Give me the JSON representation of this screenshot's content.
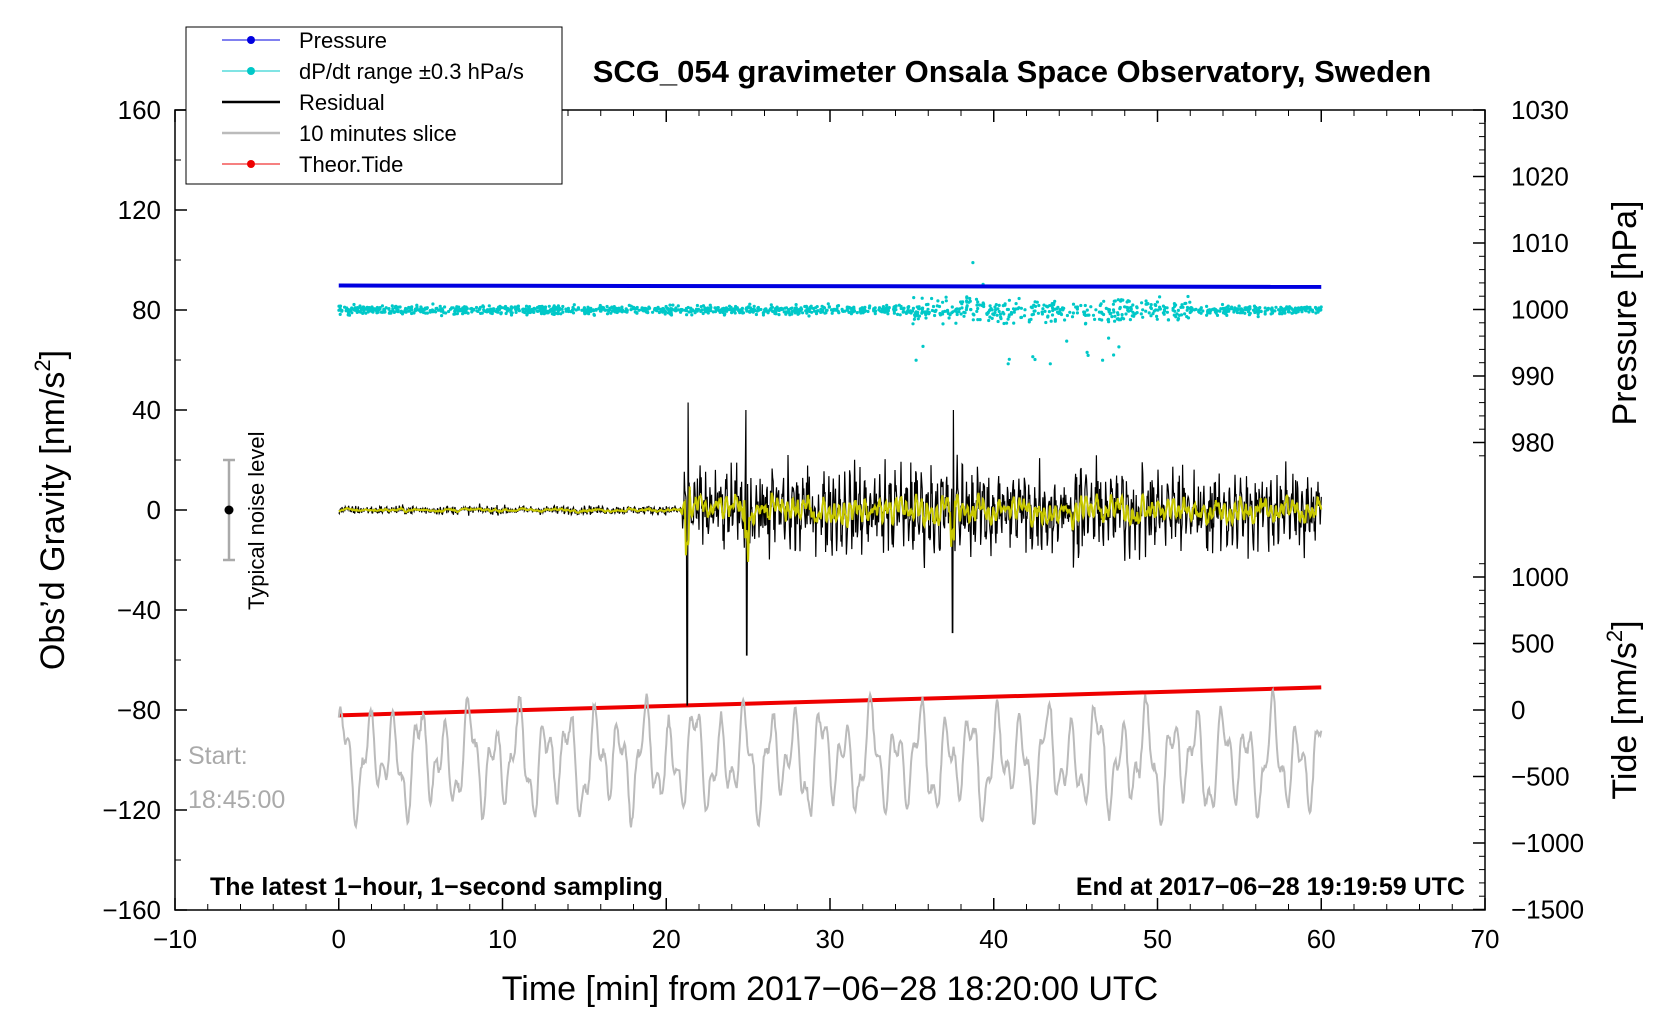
{
  "chart_data": {
    "type": "line",
    "title": "SCG_054 gravimeter Onsala Space Observatory, Sweden",
    "xlabel": "Time [min] from 2017−06−28 18:20:00 UTC",
    "ylabel_left": "Obs’d Gravity [nm/s",
    "ylabel_left_sup": "2",
    "ylabel_left_close": "]",
    "ylabel_right_pressure": "Pressure [hPa]",
    "ylabel_right_tide": "Tide [nm/s",
    "ylabel_right_tide_sup": "2",
    "ylabel_right_tide_close": "]",
    "xlim": [
      -10,
      70
    ],
    "ylim_left": [
      -160,
      160
    ],
    "x_ticks": [
      "−10",
      "0",
      "10",
      "20",
      "30",
      "40",
      "50",
      "60",
      "70"
    ],
    "y_left_ticks": [
      "160",
      "120",
      "80",
      "40",
      "0",
      "−40",
      "−80",
      "−120",
      "−160"
    ],
    "pressure_ticks": [
      "1030",
      "1020",
      "1010",
      "1000",
      "990",
      "980"
    ],
    "tide_ticks": [
      "1000",
      "500",
      "0",
      "−500",
      "−1000",
      "−1500"
    ],
    "legend": [
      {
        "label": "Pressure",
        "color": "#0000e0",
        "marker": true
      },
      {
        "label": "dP/dt range ±0.3 hPa/s",
        "color": "#00c8c8",
        "marker": true
      },
      {
        "label": "Residual",
        "color": "#000000",
        "marker": false
      },
      {
        "label": "10 minutes slice",
        "color": "#bbbbbb",
        "marker": false
      },
      {
        "label": "Theor.Tide",
        "color": "#ee0000",
        "marker": true
      }
    ],
    "series": [
      {
        "name": "Pressure",
        "axis": "pressure",
        "x": [
          0,
          60
        ],
        "values": [
          1003.6,
          1003.4
        ],
        "color": "#0000e0"
      },
      {
        "name": "dP/dt range ±0.3 hPa/s",
        "axis": "gravity",
        "type": "scatter",
        "center": 80,
        "x_range": [
          0,
          60
        ],
        "color": "#00c8c8"
      },
      {
        "name": "Residual",
        "axis": "gravity",
        "x_range": [
          0,
          60
        ],
        "quiet_until": 21,
        "quiet_amplitude": 3,
        "active_amplitude": 25,
        "spikes": [
          {
            "x": 21.3,
            "min": -78,
            "max": 43
          },
          {
            "x": 24.9,
            "min": -58,
            "max": 40
          },
          {
            "x": 37.5,
            "min": -49,
            "max": 40
          }
        ],
        "color": "#000000"
      },
      {
        "name": "Residual (smoothed)",
        "axis": "gravity",
        "x_range": [
          0,
          60
        ],
        "color": "#c8c800"
      },
      {
        "name": "10 minutes slice",
        "axis": "gravity",
        "x_range": [
          0,
          60
        ],
        "center": -100,
        "amplitude": 22,
        "color": "#bbbbbb"
      },
      {
        "name": "Theor.Tide",
        "axis": "tide",
        "x": [
          0,
          60
        ],
        "values": [
          -40,
          170
        ],
        "color": "#ee0000"
      }
    ],
    "noise_level": {
      "label": "Typical noise level",
      "x": -7,
      "center": 0,
      "range": [
        -20,
        20
      ]
    },
    "annotations": {
      "start_label": "Start:",
      "start_time": "18:45:00",
      "bottom_left": "The latest 1−hour, 1−second sampling",
      "bottom_right": "End at 2017−06−28 19:19:59 UTC"
    }
  }
}
